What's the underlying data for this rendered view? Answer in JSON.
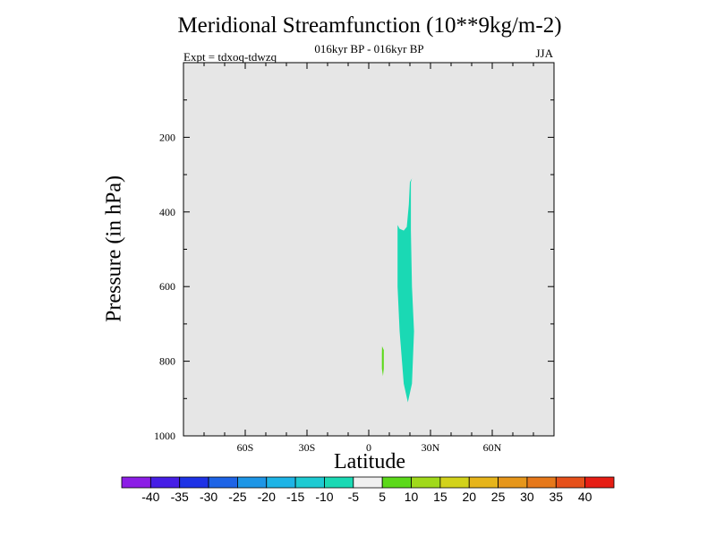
{
  "chart_data": {
    "type": "contour",
    "title": "Meridional Streamfunction (10**9kg/m-2)",
    "subtitle": "016kyr BP - 016kyr BP",
    "left_label": "Expt = tdxoq-tdwzq",
    "right_label": "JJA",
    "xlabel": "Latitude",
    "ylabel": "Pressure (in hPa)",
    "xlim": [
      -90,
      90
    ],
    "ylim": [
      1000,
      0
    ],
    "x_ticks": [
      {
        "value": -60,
        "label": "60S"
      },
      {
        "value": -30,
        "label": "30S"
      },
      {
        "value": 0,
        "label": "0"
      },
      {
        "value": 30,
        "label": "30N"
      },
      {
        "value": 60,
        "label": "60N"
      }
    ],
    "y_ticks": [
      {
        "value": 200,
        "label": "200"
      },
      {
        "value": 400,
        "label": "400"
      },
      {
        "value": 600,
        "label": "600"
      },
      {
        "value": 800,
        "label": "800"
      },
      {
        "value": 1000,
        "label": "1000"
      }
    ],
    "background_color": "#e6e6e6",
    "regions": [
      {
        "name": "negative-cell",
        "level": "-10 to -5",
        "color": "#1ad9b4",
        "points": [
          [
            21,
            310
          ],
          [
            20,
            320
          ],
          [
            19.5,
            380
          ],
          [
            18.5,
            440
          ],
          [
            17,
            450
          ],
          [
            15,
            445
          ],
          [
            14,
            435
          ],
          [
            14,
            600
          ],
          [
            15,
            720
          ],
          [
            17,
            860
          ],
          [
            19,
            910
          ],
          [
            21,
            860
          ],
          [
            22,
            720
          ],
          [
            21,
            600
          ],
          [
            20.5,
            450
          ],
          [
            20.5,
            320
          ]
        ]
      },
      {
        "name": "positive-cell",
        "level": "5 to 10",
        "color": "#5cd91a",
        "points": [
          [
            6.5,
            760
          ],
          [
            7.3,
            770
          ],
          [
            7.3,
            820
          ],
          [
            6.9,
            840
          ],
          [
            6.4,
            820
          ],
          [
            6.4,
            780
          ]
        ]
      }
    ],
    "colorbar": {
      "levels": [
        "-40",
        "-35",
        "-30",
        "-25",
        "-20",
        "-15",
        "-10",
        "-5",
        "5",
        "10",
        "15",
        "20",
        "25",
        "30",
        "35",
        "40"
      ],
      "colors": [
        "#8c1ee6",
        "#461ee6",
        "#1e32e6",
        "#1e64e6",
        "#1e96e6",
        "#1eb4e6",
        "#1ecad2",
        "#1ad9b4",
        "#f0f0f0",
        "#5cd91a",
        "#a0d91a",
        "#d2d21a",
        "#e6b41a",
        "#e6961a",
        "#e6781a",
        "#e6501a",
        "#e61e14"
      ]
    }
  }
}
